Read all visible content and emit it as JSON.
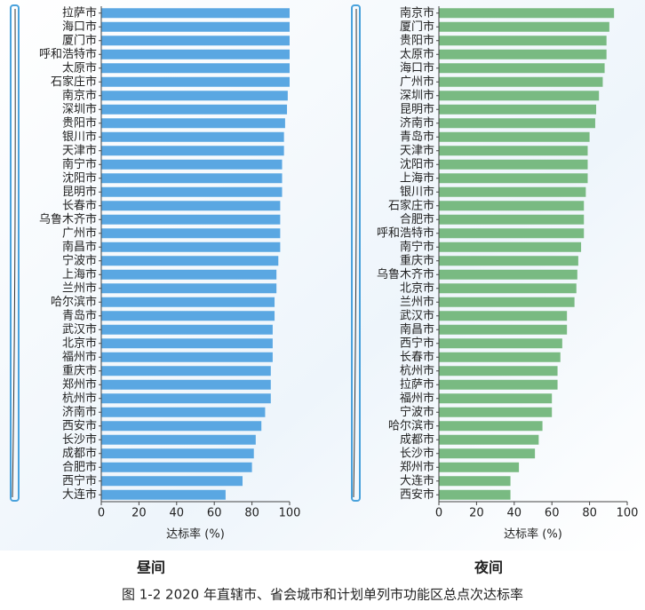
{
  "caption": "图 1-2   2020 年直辖市、省会城市和计划单列市功能区总点次达标率",
  "chart_data": [
    {
      "type": "barh",
      "title": "昼间",
      "xlabel": "达标率 (%)",
      "color": "#5aa7e2",
      "categories": [
        "拉萨市",
        "海口市",
        "厦门市",
        "呼和浩特市",
        "太原市",
        "石家庄市",
        "南京市",
        "深圳市",
        "贵阳市",
        "银川市",
        "天津市",
        "南宁市",
        "沈阳市",
        "昆明市",
        "长春市",
        "乌鲁木齐市",
        "广州市",
        "南昌市",
        "宁波市",
        "上海市",
        "兰州市",
        "哈尔滨市",
        "青岛市",
        "武汉市",
        "北京市",
        "福州市",
        "重庆市",
        "郑州市",
        "杭州市",
        "济南市",
        "西安市",
        "长沙市",
        "成都市",
        "合肥市",
        "西宁市",
        "大连市"
      ],
      "values": [
        100,
        100,
        100,
        100,
        100,
        100,
        99,
        98.6,
        97.6,
        97,
        97,
        96,
        96,
        96,
        95,
        95,
        95,
        95,
        94,
        93,
        93,
        92,
        92,
        91,
        91,
        91,
        90,
        90,
        90,
        87,
        85,
        82,
        81,
        80,
        75,
        66
      ],
      "xlim": [
        0,
        100
      ],
      "xticks": [
        0,
        20,
        40,
        60,
        80,
        100
      ]
    },
    {
      "type": "barh",
      "title": "夜间",
      "xlabel": "达标率 (%)",
      "color": "#79ba82",
      "categories": [
        "南京市",
        "厦门市",
        "贵阳市",
        "太原市",
        "海口市",
        "广州市",
        "深圳市",
        "昆明市",
        "济南市",
        "青岛市",
        "天津市",
        "沈阳市",
        "上海市",
        "银川市",
        "石家庄市",
        "合肥市",
        "呼和浩特市",
        "南宁市",
        "重庆市",
        "乌鲁木齐市",
        "北京市",
        "兰州市",
        "武汉市",
        "南昌市",
        "西宁市",
        "长春市",
        "杭州市",
        "拉萨市",
        "福州市",
        "宁波市",
        "哈尔滨市",
        "成都市",
        "长沙市",
        "郑州市",
        "大连市",
        "西安市"
      ],
      "values": [
        93,
        90.5,
        89,
        89,
        88,
        87,
        85,
        83.5,
        83,
        80,
        79,
        79,
        79,
        78,
        77,
        77,
        77,
        75.5,
        74,
        73.5,
        73,
        72,
        68,
        68,
        65.5,
        64.5,
        63,
        63,
        60,
        60,
        55,
        53,
        51,
        42.5,
        38,
        38
      ],
      "xlim": [
        0,
        100
      ],
      "xticks": [
        0,
        20,
        40,
        60,
        80,
        100
      ]
    }
  ]
}
